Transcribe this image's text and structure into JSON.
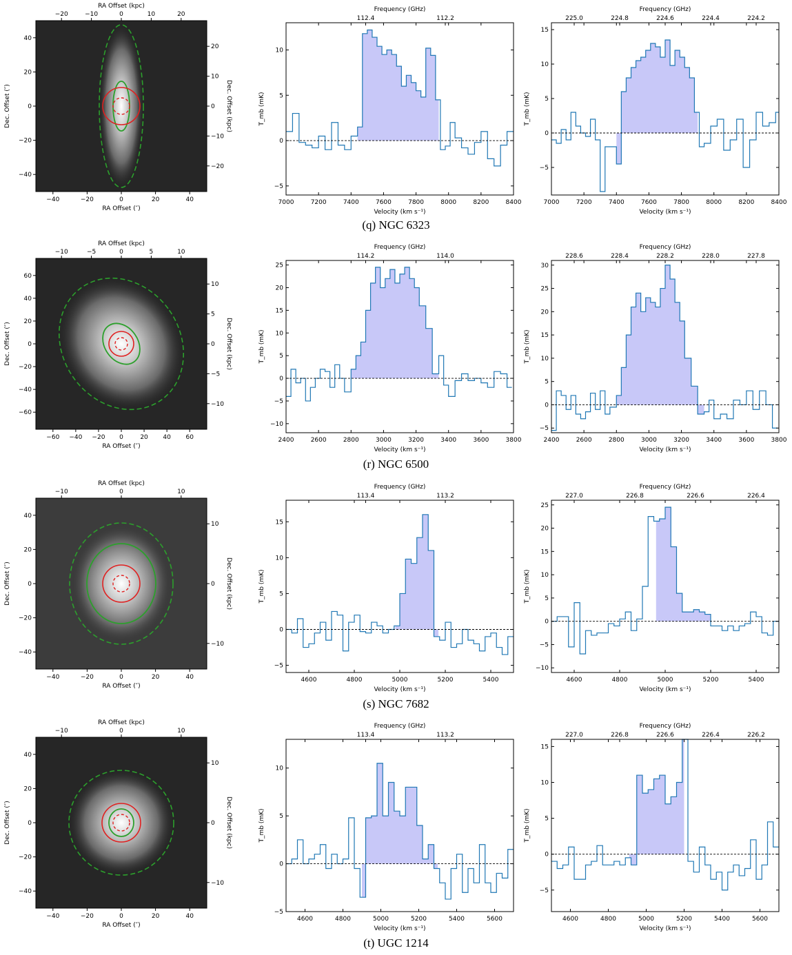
{
  "rows": [
    {
      "caption": "(q) NGC 6323",
      "image": {
        "top_label": "RA Offset (kpc)",
        "bottom_label": "RA Offset (″)",
        "left_label": "Dec. Offset (″)",
        "right_label": "Dec. Offset (kpc)",
        "bottom_ticks": [
          "−40",
          "−20",
          "0",
          "20",
          "40"
        ],
        "left_ticks": [
          "−40",
          "−20",
          "0",
          "20",
          "40"
        ],
        "top_ticks": [
          "−20",
          "−10",
          "0",
          "10",
          "20"
        ],
        "right_ticks": [
          "−20",
          "−10",
          "0",
          "10",
          "20"
        ]
      },
      "spectra": [
        {
          "top_label": "Frequency (GHz)",
          "bottom_label": "Velocity (km s⁻¹)",
          "ylabel": "T_mb (mK)",
          "xticks": [
            "7000",
            "7200",
            "7400",
            "7600",
            "7800",
            "8000",
            "8200",
            "8400"
          ],
          "yticks": [
            "−5",
            "0",
            "5",
            "10"
          ],
          "topticks": [
            "112.4",
            "112.2"
          ]
        },
        {
          "top_label": "Frequency (GHz)",
          "bottom_label": "Velocity (km s⁻¹)",
          "ylabel": "T_mb (mK)",
          "xticks": [
            "7000",
            "7200",
            "7400",
            "7600",
            "7800",
            "8000",
            "8200",
            "8400"
          ],
          "yticks": [
            "−5",
            "0",
            "5",
            "10",
            "15"
          ],
          "topticks": [
            "225.0",
            "224.8",
            "224.6",
            "224.4",
            "224.2"
          ]
        }
      ]
    },
    {
      "caption": "(r) NGC 6500",
      "image": {
        "top_label": "RA Offset (kpc)",
        "bottom_label": "RA Offset (″)",
        "left_label": "Dec. Offset (″)",
        "right_label": "Dec. Offset (kpc)",
        "bottom_ticks": [
          "−60",
          "−40",
          "−20",
          "0",
          "20",
          "40",
          "60"
        ],
        "left_ticks": [
          "−60",
          "−40",
          "−20",
          "0",
          "20",
          "40",
          "60"
        ],
        "top_ticks": [
          "−10",
          "−5",
          "0",
          "5",
          "10"
        ],
        "right_ticks": [
          "−10",
          "−5",
          "0",
          "5",
          "10"
        ]
      },
      "spectra": [
        {
          "top_label": "Frequency (GHz)",
          "bottom_label": "Velocity (km s⁻¹)",
          "ylabel": "T_mb (mK)",
          "xticks": [
            "2400",
            "2600",
            "2800",
            "3000",
            "3200",
            "3400",
            "3600",
            "3800"
          ],
          "yticks": [
            "−10",
            "−5",
            "0",
            "5",
            "10",
            "15",
            "20",
            "25"
          ],
          "topticks": [
            "114.2",
            "114.0"
          ]
        },
        {
          "top_label": "Frequency (GHz)",
          "bottom_label": "Velocity (km s⁻¹)",
          "ylabel": "T_mb (mK)",
          "xticks": [
            "2400",
            "2600",
            "2800",
            "3000",
            "3200",
            "3400",
            "3600",
            "3800"
          ],
          "yticks": [
            "−5",
            "0",
            "5",
            "10",
            "15",
            "20",
            "25",
            "30"
          ],
          "topticks": [
            "228.6",
            "228.4",
            "228.2",
            "228.0",
            "227.8"
          ]
        }
      ]
    },
    {
      "caption": "(s) NGC 7682",
      "image": {
        "top_label": "RA Offset (kpc)",
        "bottom_label": "RA Offset (″)",
        "left_label": "Dec. Offset (″)",
        "right_label": "Dec. Offset (kpc)",
        "bottom_ticks": [
          "−40",
          "−20",
          "0",
          "20",
          "40"
        ],
        "left_ticks": [
          "−40",
          "−20",
          "0",
          "20",
          "40"
        ],
        "top_ticks": [
          "−10",
          "0",
          "10"
        ],
        "right_ticks": [
          "−10",
          "0",
          "10"
        ]
      },
      "spectra": [
        {
          "top_label": "Frequency (GHz)",
          "bottom_label": "Velocity (km s⁻¹)",
          "ylabel": "T_mb (mK)",
          "xticks": [
            "4600",
            "4800",
            "5000",
            "5200",
            "5400"
          ],
          "yticks": [
            "−5",
            "0",
            "5",
            "10",
            "15"
          ],
          "topticks": [
            "113.4",
            "113.2"
          ]
        },
        {
          "top_label": "Frequency (GHz)",
          "bottom_label": "Velocity (km s⁻¹)",
          "ylabel": "T_mb (mK)",
          "xticks": [
            "4600",
            "4800",
            "5000",
            "5200",
            "5400"
          ],
          "yticks": [
            "−10",
            "−5",
            "0",
            "5",
            "10",
            "15",
            "20",
            "25"
          ],
          "topticks": [
            "227.0",
            "226.8",
            "226.6",
            "226.4"
          ]
        }
      ]
    },
    {
      "caption": "(t) UGC 1214",
      "image": {
        "top_label": "RA Offset (kpc)",
        "bottom_label": "RA Offset (″)",
        "left_label": "Dec. Offset (″)",
        "right_label": "Dec. Offset (kpc)",
        "bottom_ticks": [
          "−40",
          "−20",
          "0",
          "20",
          "40"
        ],
        "left_ticks": [
          "−40",
          "−20",
          "0",
          "20",
          "40"
        ],
        "top_ticks": [
          "−10",
          "0",
          "10"
        ],
        "right_ticks": [
          "−10",
          "0",
          "10"
        ]
      },
      "spectra": [
        {
          "top_label": "Frequency (GHz)",
          "bottom_label": "Velocity (km s⁻¹)",
          "ylabel": "T_mb (mK)",
          "xticks": [
            "4600",
            "4800",
            "5000",
            "5200",
            "5400",
            "5600"
          ],
          "yticks": [
            "−5",
            "0",
            "5",
            "10"
          ],
          "topticks": [
            "113.4",
            "113.2"
          ]
        },
        {
          "top_label": "Frequency (GHz)",
          "bottom_label": "Velocity (km s⁻¹)",
          "ylabel": "T_mb (mK)",
          "xticks": [
            "4600",
            "4800",
            "5000",
            "5200",
            "5400",
            "5600"
          ],
          "yticks": [
            "−5",
            "0",
            "5",
            "10",
            "15"
          ],
          "topticks": [
            "227.0",
            "226.8",
            "226.6",
            "226.4",
            "226.2"
          ]
        }
      ]
    }
  ],
  "chart_data": [
    {
      "type": "line",
      "panel": "q1",
      "xlim": [
        7000,
        8400
      ],
      "ylim": [
        -6,
        13
      ],
      "shade": [
        7440,
        7940
      ],
      "x": [
        7000,
        7040,
        7080,
        7120,
        7160,
        7200,
        7240,
        7280,
        7320,
        7360,
        7400,
        7440,
        7470,
        7500,
        7530,
        7560,
        7590,
        7620,
        7650,
        7680,
        7710,
        7740,
        7770,
        7800,
        7830,
        7860,
        7890,
        7920,
        7950,
        7980,
        8010,
        8040,
        8080,
        8120,
        8160,
        8200,
        8240,
        8280,
        8320,
        8360
      ],
      "y": [
        1,
        3,
        -0.2,
        -0.5,
        -0.8,
        0.5,
        -1,
        2,
        -0.5,
        -1,
        0.5,
        1.5,
        11.8,
        12.2,
        11.4,
        10.4,
        9.5,
        10,
        9.5,
        8.2,
        6,
        7.2,
        6.4,
        5.5,
        4.8,
        10.2,
        9.4,
        4.5,
        -1,
        -0.6,
        2,
        0.3,
        -0.8,
        -1.5,
        -0.2,
        1,
        -2,
        -2.8,
        -0.5,
        1
      ]
    },
    {
      "type": "line",
      "panel": "q2",
      "xlim": [
        7000,
        8400
      ],
      "ylim": [
        -9,
        16
      ],
      "shade": [
        7400,
        7900
      ],
      "x": [
        7000,
        7030,
        7060,
        7090,
        7120,
        7150,
        7180,
        7210,
        7240,
        7270,
        7300,
        7330,
        7360,
        7400,
        7430,
        7460,
        7490,
        7520,
        7550,
        7580,
        7610,
        7640,
        7670,
        7700,
        7730,
        7760,
        7790,
        7820,
        7850,
        7880,
        7910,
        7940,
        7980,
        8020,
        8060,
        8100,
        8140,
        8180,
        8220,
        8260,
        8300,
        8340,
        8380
      ],
      "y": [
        -1,
        -1.5,
        0.5,
        -1,
        3,
        1,
        0,
        -0.5,
        2,
        -1,
        -8.5,
        -2,
        -2,
        -4.5,
        6,
        8,
        9.5,
        10.5,
        11,
        12,
        13,
        12.5,
        11,
        13.5,
        9.8,
        12,
        11,
        9.5,
        8,
        3,
        -2,
        -1.5,
        1,
        2,
        -2.5,
        -1,
        2,
        -5,
        -1,
        3,
        1,
        1.5,
        3
      ]
    },
    {
      "type": "line",
      "panel": "r1",
      "xlim": [
        2400,
        3800
      ],
      "ylim": [
        -12,
        26
      ],
      "shade": [
        2800,
        3340
      ],
      "x": [
        2400,
        2430,
        2460,
        2490,
        2520,
        2550,
        2580,
        2610,
        2640,
        2670,
        2700,
        2730,
        2760,
        2800,
        2830,
        2860,
        2890,
        2920,
        2950,
        2980,
        3010,
        3040,
        3070,
        3100,
        3130,
        3160,
        3190,
        3220,
        3260,
        3300,
        3340,
        3370,
        3400,
        3440,
        3480,
        3520,
        3560,
        3600,
        3640,
        3680,
        3720,
        3760
      ],
      "y": [
        -4,
        2,
        -1,
        0,
        -5,
        -2,
        0,
        2,
        1.5,
        -2,
        3,
        0,
        -3,
        2,
        5,
        8,
        15,
        21,
        24.5,
        20,
        22,
        24,
        21,
        23,
        24.5,
        22,
        20,
        16,
        11,
        1,
        5,
        -1.5,
        -4,
        -0.5,
        1,
        -0.5,
        0,
        -1,
        -2,
        1.5,
        1,
        -2
      ]
    },
    {
      "type": "line",
      "panel": "r2",
      "xlim": [
        2400,
        3800
      ],
      "ylim": [
        -6,
        31
      ],
      "shade": [
        2800,
        3340
      ],
      "x": [
        2400,
        2430,
        2460,
        2490,
        2520,
        2550,
        2580,
        2610,
        2640,
        2670,
        2700,
        2730,
        2760,
        2800,
        2830,
        2860,
        2890,
        2920,
        2950,
        2980,
        3010,
        3040,
        3070,
        3100,
        3130,
        3160,
        3190,
        3220,
        3260,
        3300,
        3340,
        3370,
        3400,
        3440,
        3480,
        3520,
        3560,
        3600,
        3640,
        3680,
        3720,
        3760
      ],
      "y": [
        -5.5,
        3,
        2,
        -1,
        2,
        -2,
        -3,
        -1.5,
        2.5,
        -1,
        3,
        -2,
        -0.5,
        2,
        8,
        15,
        21,
        24,
        20,
        23,
        22,
        21,
        25,
        30,
        27,
        22,
        18,
        10,
        4,
        -2,
        -1.5,
        1,
        -3,
        -2,
        -3,
        1,
        0,
        3,
        -1,
        3,
        0,
        -5
      ]
    },
    {
      "type": "line",
      "panel": "s1",
      "xlim": [
        4500,
        5500
      ],
      "ylim": [
        -6,
        18
      ],
      "shade": [
        4980,
        5170
      ],
      "x": [
        4500,
        4525,
        4550,
        4575,
        4600,
        4625,
        4650,
        4675,
        4700,
        4725,
        4750,
        4775,
        4800,
        4825,
        4850,
        4875,
        4900,
        4925,
        4950,
        4975,
        5000,
        5025,
        5050,
        5075,
        5100,
        5125,
        5150,
        5175,
        5200,
        5225,
        5250,
        5275,
        5300,
        5325,
        5350,
        5375,
        5400,
        5425,
        5450,
        5475
      ],
      "y": [
        0,
        -0.5,
        1.5,
        -2.5,
        -2,
        -0.5,
        1,
        -1.5,
        2.5,
        2,
        -3,
        1,
        2,
        -0.3,
        -0.5,
        1,
        0.5,
        -0.5,
        0,
        0.5,
        5,
        9.8,
        9.2,
        12.8,
        16,
        11,
        -1,
        -1.5,
        1,
        -2.5,
        -2,
        0,
        -1.5,
        -2,
        -3,
        -1,
        -0.5,
        -2.5,
        -3.5,
        -1
      ]
    },
    {
      "type": "line",
      "panel": "s2",
      "xlim": [
        4500,
        5500
      ],
      "ylim": [
        -11,
        26
      ],
      "shade": [
        4960,
        5200
      ],
      "x": [
        4500,
        4525,
        4550,
        4575,
        4600,
        4625,
        4650,
        4675,
        4700,
        4725,
        4750,
        4775,
        4800,
        4825,
        4850,
        4875,
        4900,
        4925,
        4950,
        4975,
        5000,
        5025,
        5050,
        5075,
        5100,
        5125,
        5150,
        5175,
        5200,
        5225,
        5250,
        5275,
        5300,
        5325,
        5350,
        5375,
        5400,
        5425,
        5450,
        5475
      ],
      "y": [
        0,
        1,
        1,
        -5.5,
        4,
        -7,
        -2,
        -3,
        -2.5,
        -2.5,
        -0.5,
        -1,
        0.5,
        2,
        -2,
        0.5,
        7.5,
        22.5,
        21.5,
        22,
        24.5,
        16,
        6,
        2,
        2,
        2.5,
        2,
        1.5,
        -1,
        -1,
        -2,
        -1,
        -2,
        -1,
        -0.5,
        2,
        1,
        -2.5,
        -3,
        0
      ]
    },
    {
      "type": "line",
      "panel": "t1",
      "xlim": [
        4500,
        5700
      ],
      "ylim": [
        -5,
        13
      ],
      "shade": [
        4900,
        5300
      ],
      "x": [
        4500,
        4530,
        4560,
        4590,
        4620,
        4650,
        4680,
        4710,
        4740,
        4770,
        4800,
        4830,
        4860,
        4890,
        4920,
        4950,
        4980,
        5010,
        5040,
        5070,
        5100,
        5130,
        5160,
        5190,
        5220,
        5250,
        5280,
        5310,
        5340,
        5370,
        5400,
        5430,
        5460,
        5490,
        5520,
        5550,
        5580,
        5610,
        5640,
        5670
      ],
      "y": [
        0,
        0.5,
        2.5,
        0,
        0.5,
        1,
        2,
        -0.5,
        1,
        0,
        0.5,
        4.8,
        -0.5,
        -3.5,
        4.8,
        5,
        10.5,
        5,
        8.5,
        5.5,
        5,
        8,
        8,
        4,
        0.5,
        2,
        -0.5,
        -2,
        -3.7,
        -0.5,
        1,
        -3,
        -0.5,
        -2,
        2,
        -2,
        -3,
        -1,
        -1.5,
        1.5
      ]
    },
    {
      "type": "line",
      "panel": "t2",
      "xlim": [
        4500,
        5700
      ],
      "ylim": [
        -8,
        16
      ],
      "shade": [
        4910,
        5200
      ],
      "x": [
        4500,
        4530,
        4560,
        4590,
        4620,
        4650,
        4680,
        4710,
        4740,
        4770,
        4800,
        4830,
        4860,
        4890,
        4920,
        4950,
        4980,
        5010,
        5040,
        5070,
        5100,
        5130,
        5160,
        5190,
        5220,
        5250,
        5280,
        5310,
        5340,
        5370,
        5400,
        5430,
        5460,
        5490,
        5520,
        5550,
        5580,
        5610,
        5640,
        5670
      ],
      "y": [
        -1,
        -2,
        -1.5,
        1,
        -3.5,
        -3.5,
        -1.5,
        -1,
        1.2,
        -1.5,
        -1.5,
        -1,
        -1.5,
        -0.5,
        -1.5,
        11,
        8.5,
        9,
        10.5,
        11,
        7,
        8,
        10,
        16,
        -1,
        -2.5,
        1,
        -1.5,
        -3.5,
        -2.5,
        -5,
        -2.5,
        -1.5,
        -3,
        -2,
        2,
        -3.5,
        -1.5,
        4.5,
        1
      ]
    }
  ],
  "colors": {
    "step_line": "#1f77b4",
    "shade_fill": "#c8c8f8",
    "inner_ellipse": "#2ca02c",
    "outer_ellipse_dashed": "#2ca02c",
    "beam_circle": "#e02020",
    "beam_dashed": "#e02020"
  }
}
